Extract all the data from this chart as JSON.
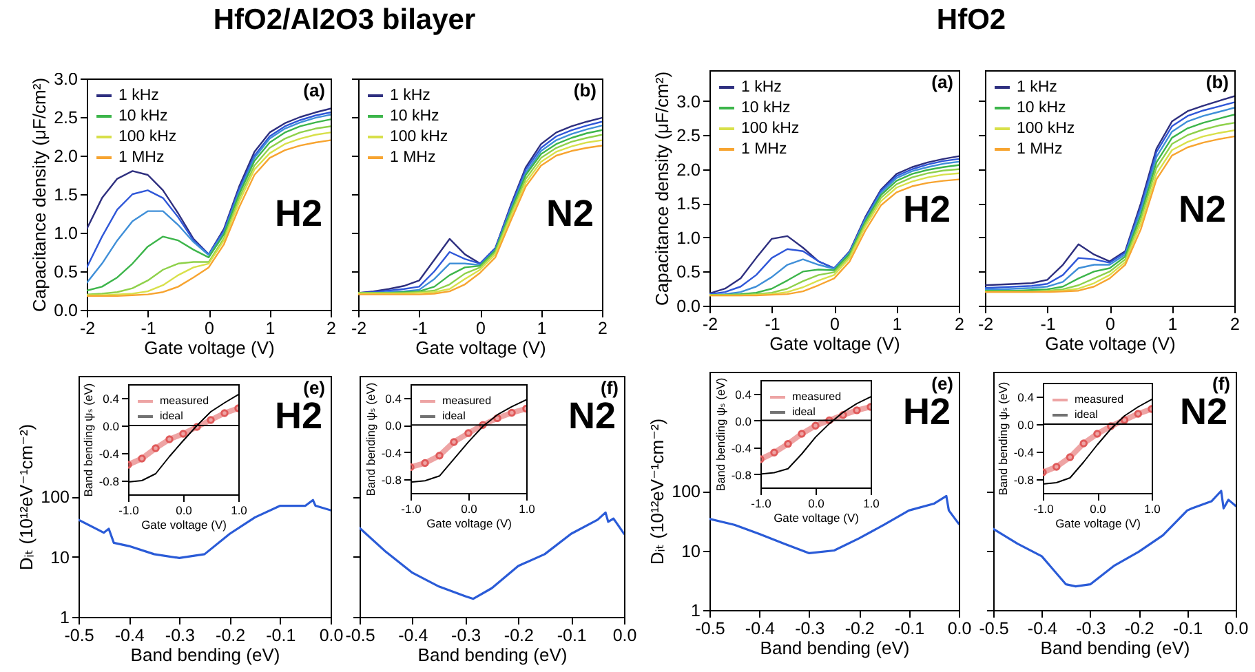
{
  "chart_data": [
    {
      "type": "line",
      "title": "HfO2/Al2O3 bilayer",
      "xlabel": "Gate voltage (V)",
      "ylabel": "Capacitance density (μF/cm²)",
      "annotations": [
        "(a)",
        "H2"
      ],
      "legend": "top left",
      "xlim": [
        -2,
        2
      ],
      "ylim": [
        0,
        3
      ],
      "xticks": [
        -2,
        -1,
        0,
        1,
        2
      ],
      "yticks": [
        {
          "value": 0,
          "label": "0.0"
        },
        {
          "value": 0.5,
          "label": "0.5"
        },
        {
          "value": 1,
          "label": "1.0"
        },
        {
          "value": 1.5,
          "label": "1.5"
        },
        {
          "value": 2,
          "label": "2.0"
        },
        {
          "value": 2.5,
          "label": "2.5"
        },
        {
          "value": 3,
          "label": "3.0"
        }
      ],
      "x": [
        -2,
        -1.75,
        -1.5,
        -1.25,
        -1,
        -0.75,
        -0.5,
        -0.25,
        0,
        0.25,
        0.5,
        0.75,
        1,
        1.25,
        1.5,
        1.75,
        2
      ],
      "series": [
        {
          "name": "1 kHz",
          "color": "#2e2f7f",
          "values": [
            1.05,
            1.45,
            1.7,
            1.8,
            1.75,
            1.55,
            1.25,
            0.92,
            0.72,
            1.05,
            1.6,
            2.05,
            2.3,
            2.42,
            2.5,
            2.56,
            2.61
          ]
        },
        {
          "color": "#2f57d8",
          "values": [
            0.55,
            0.95,
            1.3,
            1.5,
            1.55,
            1.45,
            1.2,
            0.9,
            0.72,
            1.03,
            1.57,
            2.0,
            2.25,
            2.38,
            2.46,
            2.52,
            2.56
          ]
        },
        {
          "color": "#3f8fd8",
          "values": [
            0.35,
            0.6,
            0.9,
            1.15,
            1.28,
            1.28,
            1.1,
            0.88,
            0.71,
            1.0,
            1.53,
            1.97,
            2.22,
            2.35,
            2.43,
            2.49,
            2.53
          ]
        },
        {
          "name": "10 kHz",
          "color": "#3cb54a",
          "values": [
            0.25,
            0.3,
            0.42,
            0.6,
            0.82,
            0.95,
            0.9,
            0.78,
            0.68,
            0.98,
            1.5,
            1.93,
            2.17,
            2.3,
            2.38,
            2.43,
            2.47
          ]
        },
        {
          "color": "#8ed14a",
          "values": [
            0.2,
            0.21,
            0.23,
            0.28,
            0.38,
            0.52,
            0.6,
            0.62,
            0.62,
            0.93,
            1.45,
            1.87,
            2.1,
            2.22,
            2.3,
            2.35,
            2.38
          ]
        },
        {
          "name": "100 kHz",
          "color": "#d8e04a",
          "values": [
            0.19,
            0.19,
            0.2,
            0.21,
            0.24,
            0.32,
            0.45,
            0.55,
            0.6,
            0.9,
            1.4,
            1.82,
            2.03,
            2.15,
            2.22,
            2.27,
            2.3
          ]
        },
        {
          "name": "1 MHz",
          "color": "#f7a430",
          "values": [
            0.18,
            0.18,
            0.18,
            0.19,
            0.2,
            0.23,
            0.3,
            0.42,
            0.55,
            0.85,
            1.33,
            1.75,
            1.97,
            2.07,
            2.13,
            2.17,
            2.2
          ]
        }
      ]
    },
    {
      "type": "line",
      "xlabel": "Gate voltage (V)",
      "annotations": [
        "(b)",
        "N2"
      ],
      "legend": "top left",
      "tick_labels": "x",
      "xlim": [
        -2,
        2
      ],
      "ylim": [
        0,
        3
      ],
      "xticks": [
        -2,
        -1,
        0,
        1,
        2
      ],
      "yticks": [
        0,
        0.5,
        1,
        1.5,
        2,
        2.5,
        3
      ],
      "x": [
        -2,
        -1.75,
        -1.5,
        -1.25,
        -1,
        -0.75,
        -0.5,
        -0.25,
        0,
        0.25,
        0.5,
        0.75,
        1,
        1.25,
        1.5,
        1.75,
        2
      ],
      "series": [
        {
          "name": "1 kHz",
          "color": "#2e2f7f",
          "values": [
            0.22,
            0.24,
            0.27,
            0.31,
            0.38,
            0.65,
            0.92,
            0.72,
            0.6,
            0.8,
            1.35,
            1.85,
            2.15,
            2.3,
            2.38,
            2.44,
            2.49
          ]
        },
        {
          "color": "#2f57d8",
          "values": [
            0.22,
            0.23,
            0.25,
            0.27,
            0.3,
            0.5,
            0.75,
            0.66,
            0.6,
            0.8,
            1.33,
            1.82,
            2.1,
            2.25,
            2.33,
            2.39,
            2.44
          ]
        },
        {
          "color": "#3f8fd8",
          "values": [
            0.22,
            0.22,
            0.23,
            0.24,
            0.26,
            0.4,
            0.6,
            0.6,
            0.58,
            0.78,
            1.3,
            1.78,
            2.06,
            2.2,
            2.28,
            2.34,
            2.39
          ]
        },
        {
          "name": "10 kHz",
          "color": "#3cb54a",
          "values": [
            0.22,
            0.22,
            0.22,
            0.23,
            0.24,
            0.3,
            0.45,
            0.55,
            0.57,
            0.77,
            1.27,
            1.75,
            2.02,
            2.15,
            2.23,
            2.29,
            2.33
          ]
        },
        {
          "color": "#8ed14a",
          "values": [
            0.22,
            0.22,
            0.22,
            0.22,
            0.23,
            0.25,
            0.33,
            0.47,
            0.55,
            0.75,
            1.24,
            1.7,
            1.97,
            2.1,
            2.18,
            2.23,
            2.27
          ]
        },
        {
          "name": "100 kHz",
          "color": "#d8e04a",
          "values": [
            0.21,
            0.21,
            0.21,
            0.21,
            0.22,
            0.23,
            0.27,
            0.4,
            0.52,
            0.72,
            1.2,
            1.65,
            1.92,
            2.05,
            2.12,
            2.17,
            2.2
          ]
        },
        {
          "name": "1 MHz",
          "color": "#f7a430",
          "values": [
            0.2,
            0.2,
            0.2,
            0.2,
            0.2,
            0.21,
            0.24,
            0.33,
            0.48,
            0.68,
            1.15,
            1.6,
            1.87,
            2.0,
            2.06,
            2.1,
            2.13
          ]
        }
      ]
    },
    {
      "type": "line",
      "title": "HfO2",
      "xlabel": "Gate voltage (V)",
      "ylabel": "Capacitance density (μF/cm²)",
      "annotations": [
        "(a)",
        "H2"
      ],
      "legend": "top left",
      "xlim": [
        -2,
        2
      ],
      "ylim": [
        0,
        3.45
      ],
      "xticks": [
        -2,
        -1,
        0,
        1,
        2
      ],
      "yticks": [
        {
          "value": 0,
          "label": "0.0"
        },
        {
          "value": 0.5,
          "label": "0.5"
        },
        {
          "value": 1,
          "label": "1.0"
        },
        {
          "value": 1.5,
          "label": "1.5"
        },
        {
          "value": 2,
          "label": "2.0"
        },
        {
          "value": 2.5,
          "label": "2.5"
        },
        {
          "value": 3,
          "label": "3.0"
        }
      ],
      "x": [
        -2,
        -1.75,
        -1.5,
        -1.25,
        -1,
        -0.75,
        -0.5,
        -0.25,
        0,
        0.25,
        0.5,
        0.75,
        1,
        1.25,
        1.5,
        1.75,
        2
      ],
      "series": [
        {
          "name": "1 kHz",
          "color": "#2e2f7f",
          "values": [
            0.18,
            0.25,
            0.4,
            0.7,
            0.98,
            1.02,
            0.85,
            0.65,
            0.55,
            0.8,
            1.3,
            1.7,
            1.93,
            2.03,
            2.1,
            2.15,
            2.19
          ]
        },
        {
          "color": "#2f57d8",
          "values": [
            0.17,
            0.2,
            0.28,
            0.45,
            0.7,
            0.83,
            0.8,
            0.65,
            0.55,
            0.79,
            1.28,
            1.68,
            1.9,
            2.0,
            2.07,
            2.12,
            2.15
          ]
        },
        {
          "color": "#3f8fd8",
          "values": [
            0.16,
            0.17,
            0.2,
            0.28,
            0.42,
            0.6,
            0.68,
            0.6,
            0.54,
            0.78,
            1.26,
            1.65,
            1.87,
            1.97,
            2.03,
            2.08,
            2.11
          ]
        },
        {
          "name": "10 kHz",
          "color": "#3cb54a",
          "values": [
            0.16,
            0.16,
            0.17,
            0.19,
            0.25,
            0.37,
            0.5,
            0.53,
            0.52,
            0.76,
            1.23,
            1.62,
            1.83,
            1.93,
            1.99,
            2.03,
            2.06
          ]
        },
        {
          "color": "#8ed14a",
          "values": [
            0.16,
            0.16,
            0.16,
            0.17,
            0.19,
            0.25,
            0.36,
            0.45,
            0.49,
            0.73,
            1.2,
            1.58,
            1.78,
            1.88,
            1.94,
            1.98,
            2.0
          ]
        },
        {
          "name": "100 kHz",
          "color": "#d8e04a",
          "values": [
            0.15,
            0.15,
            0.15,
            0.16,
            0.17,
            0.2,
            0.27,
            0.37,
            0.45,
            0.7,
            1.16,
            1.53,
            1.73,
            1.82,
            1.88,
            1.92,
            1.94
          ]
        },
        {
          "name": "1 MHz",
          "color": "#f7a430",
          "values": [
            0.15,
            0.15,
            0.15,
            0.15,
            0.16,
            0.17,
            0.21,
            0.3,
            0.4,
            0.65,
            1.1,
            1.47,
            1.66,
            1.75,
            1.8,
            1.83,
            1.85
          ]
        }
      ]
    },
    {
      "type": "line",
      "xlabel": "Gate voltage (V)",
      "annotations": [
        "(b)",
        "N2"
      ],
      "legend": "top left",
      "tick_labels": "x",
      "xlim": [
        -2,
        2
      ],
      "ylim": [
        0,
        3.45
      ],
      "xticks": [
        -2,
        -1,
        0,
        1,
        2
      ],
      "yticks": [
        0,
        0.5,
        1,
        1.5,
        2,
        2.5,
        3
      ],
      "x": [
        -2,
        -1.75,
        -1.5,
        -1.25,
        -1,
        -0.75,
        -0.5,
        -0.25,
        0,
        0.25,
        0.5,
        0.75,
        1,
        1.25,
        1.5,
        1.75,
        2
      ],
      "series": [
        {
          "name": "1 kHz",
          "color": "#2e2f7f",
          "values": [
            0.3,
            0.31,
            0.32,
            0.33,
            0.38,
            0.6,
            0.9,
            0.75,
            0.65,
            0.8,
            1.5,
            2.3,
            2.7,
            2.85,
            2.93,
            3.0,
            3.07
          ]
        },
        {
          "color": "#2f57d8",
          "values": [
            0.26,
            0.27,
            0.28,
            0.29,
            0.32,
            0.45,
            0.7,
            0.68,
            0.63,
            0.78,
            1.45,
            2.25,
            2.63,
            2.78,
            2.86,
            2.92,
            2.98
          ]
        },
        {
          "color": "#3f8fd8",
          "values": [
            0.24,
            0.24,
            0.25,
            0.26,
            0.28,
            0.35,
            0.55,
            0.6,
            0.6,
            0.75,
            1.4,
            2.18,
            2.55,
            2.7,
            2.78,
            2.84,
            2.9
          ]
        },
        {
          "name": "10 kHz",
          "color": "#3cb54a",
          "values": [
            0.22,
            0.22,
            0.22,
            0.23,
            0.24,
            0.28,
            0.4,
            0.5,
            0.55,
            0.72,
            1.33,
            2.1,
            2.46,
            2.6,
            2.68,
            2.74,
            2.8
          ]
        },
        {
          "color": "#8ed14a",
          "values": [
            0.21,
            0.21,
            0.21,
            0.21,
            0.22,
            0.24,
            0.3,
            0.4,
            0.5,
            0.68,
            1.27,
            2.02,
            2.37,
            2.5,
            2.58,
            2.64,
            2.68
          ]
        },
        {
          "name": "100 kHz",
          "color": "#d8e04a",
          "values": [
            0.2,
            0.2,
            0.2,
            0.2,
            0.21,
            0.22,
            0.25,
            0.33,
            0.45,
            0.64,
            1.2,
            1.93,
            2.28,
            2.4,
            2.48,
            2.53,
            2.57
          ]
        },
        {
          "name": "1 MHz",
          "color": "#f7a430",
          "values": [
            0.2,
            0.2,
            0.2,
            0.2,
            0.2,
            0.21,
            0.22,
            0.28,
            0.4,
            0.6,
            1.12,
            1.85,
            2.2,
            2.32,
            2.39,
            2.44,
            2.48
          ]
        }
      ]
    },
    {
      "type": "line",
      "xlabel": "Band bending (eV)",
      "ylabel": "Dᵢₜ (10¹²eV⁻¹cm⁻²)",
      "annotations": [
        "(e)",
        "H2"
      ],
      "log": "y",
      "xlim": [
        -0.5,
        0
      ],
      "ylim": [
        1,
        10000
      ],
      "xticks": [
        -0.5,
        -0.4,
        -0.3,
        -0.2,
        -0.1,
        {
          "value": 0,
          "label": "0.0"
        }
      ],
      "yticks": [
        1,
        10,
        100
      ],
      "x": [
        -0.5,
        -0.45,
        -0.44,
        -0.43,
        -0.4,
        -0.35,
        -0.3,
        -0.25,
        -0.2,
        -0.15,
        -0.1,
        -0.05,
        -0.035,
        -0.03,
        0
      ],
      "series": [
        {
          "color": "#2a5bd7",
          "values": [
            41,
            25,
            29,
            17,
            15,
            11,
            9.5,
            11,
            24,
            45,
            70,
            70,
            87,
            70,
            59
          ]
        }
      ]
    },
    {
      "type": "line",
      "xlabel": "Gate voltage (V)",
      "ylabel": "Band bending ψₛ (eV)",
      "legend": "top left",
      "xlim": [
        -1,
        1
      ],
      "ylim": [
        -1,
        0.6
      ],
      "xticks": [
        {
          "value": -1,
          "label": "-1.0"
        },
        {
          "value": 0,
          "label": "0.0"
        },
        {
          "value": 1,
          "label": "1.0"
        }
      ],
      "yticks": [
        {
          "value": -0.8,
          "label": "-0.8"
        },
        {
          "value": -0.4,
          "label": "-0.4"
        },
        {
          "value": 0,
          "label": "0.0"
        },
        {
          "value": 0.4,
          "label": "0.4"
        }
      ],
      "ref_lines": [
        {
          "axis": "y",
          "value": 0,
          "color": "#000000"
        }
      ],
      "x": [
        -1,
        -0.75,
        -0.5,
        -0.25,
        0,
        0.25,
        0.5,
        0.75,
        1
      ],
      "series": [
        {
          "name": "measured",
          "color": "#e05a5a",
          "marker": "circle",
          "values": [
            -0.57,
            -0.48,
            -0.33,
            -0.2,
            -0.12,
            -0.02,
            0.08,
            0.18,
            0.25
          ]
        },
        {
          "name": "ideal",
          "color": "#000000",
          "values": [
            -0.82,
            -0.8,
            -0.7,
            -0.45,
            -0.22,
            0.0,
            0.2,
            0.33,
            0.45
          ]
        }
      ]
    },
    {
      "type": "line",
      "xlabel": "Band bending (eV)",
      "annotations": [
        "(f)",
        "N2"
      ],
      "log": "y",
      "tick_labels": "x",
      "xlim": [
        -0.5,
        0
      ],
      "ylim": [
        1,
        10000
      ],
      "xticks": [
        -0.5,
        -0.4,
        -0.3,
        -0.2,
        -0.1,
        {
          "value": 0,
          "label": "0.0"
        }
      ],
      "yticks": [
        1,
        10,
        100
      ],
      "x": [
        -0.5,
        -0.45,
        -0.4,
        -0.35,
        -0.3,
        -0.285,
        -0.25,
        -0.2,
        -0.15,
        -0.1,
        -0.05,
        -0.035,
        -0.03,
        -0.02,
        0
      ],
      "series": [
        {
          "color": "#2a5bd7",
          "values": [
            30,
            12,
            5.4,
            3.2,
            2.2,
            2,
            3,
            7,
            11,
            24,
            41,
            54,
            38,
            43,
            24
          ]
        }
      ]
    },
    {
      "type": "line",
      "xlabel": "Gate voltage (V)",
      "ylabel": "Band bending ψₛ (eV)",
      "legend": "top left",
      "xlim": [
        -1,
        1
      ],
      "ylim": [
        -1,
        0.6
      ],
      "xticks": [
        {
          "value": -1,
          "label": "-1.0"
        },
        {
          "value": 0,
          "label": "0.0"
        },
        {
          "value": 1,
          "label": "1.0"
        }
      ],
      "yticks": [
        {
          "value": -0.8,
          "label": "-0.8"
        },
        {
          "value": -0.4,
          "label": "-0.4"
        },
        {
          "value": 0,
          "label": "0.0"
        },
        {
          "value": 0.4,
          "label": "0.4"
        }
      ],
      "ref_lines": [
        {
          "axis": "y",
          "value": 0,
          "color": "#000000"
        }
      ],
      "x": [
        -1,
        -0.75,
        -0.5,
        -0.25,
        0,
        0.25,
        0.5,
        0.75,
        1
      ],
      "series": [
        {
          "name": "measured",
          "color": "#e05a5a",
          "marker": "circle",
          "values": [
            -0.62,
            -0.56,
            -0.45,
            -0.25,
            -0.12,
            0.0,
            0.1,
            0.18,
            0.24
          ]
        },
        {
          "name": "ideal",
          "color": "#000000",
          "values": [
            -0.84,
            -0.82,
            -0.75,
            -0.5,
            -0.25,
            -0.02,
            0.15,
            0.27,
            0.37
          ]
        }
      ]
    },
    {
      "type": "line",
      "xlabel": "Band bending (eV)",
      "ylabel": "Dᵢₜ (10¹²eV⁻¹cm⁻²)",
      "annotations": [
        "(e)",
        "H2"
      ],
      "log": "y",
      "xlim": [
        -0.5,
        0
      ],
      "ylim": [
        1,
        10000
      ],
      "xticks": [
        -0.5,
        -0.4,
        -0.3,
        -0.2,
        -0.1,
        {
          "value": 0,
          "label": "0.0"
        }
      ],
      "yticks": [
        1,
        10,
        100
      ],
      "x": [
        -0.5,
        -0.45,
        -0.4,
        -0.35,
        -0.3,
        -0.25,
        -0.2,
        -0.15,
        -0.1,
        -0.05,
        -0.025,
        -0.02,
        0
      ],
      "series": [
        {
          "color": "#2a5bd7",
          "values": [
            34,
            27,
            19,
            13,
            9,
            10,
            16,
            27,
            47,
            61,
            82,
            47,
            28
          ]
        }
      ]
    },
    {
      "type": "line",
      "xlabel": "Gate voltage (V)",
      "ylabel": "Band bending ψₛ (eV)",
      "legend": "top left",
      "xlim": [
        -1,
        1
      ],
      "ylim": [
        -1,
        0.6
      ],
      "xticks": [
        {
          "value": -1,
          "label": "-1.0"
        },
        {
          "value": 0,
          "label": "0.0"
        },
        {
          "value": 1,
          "label": "1.0"
        }
      ],
      "yticks": [
        {
          "value": -0.8,
          "label": "-0.8"
        },
        {
          "value": -0.4,
          "label": "-0.4"
        },
        {
          "value": 0,
          "label": "0.0"
        },
        {
          "value": 0.4,
          "label": "0.4"
        }
      ],
      "ref_lines": [
        {
          "axis": "y",
          "value": 0,
          "color": "#000000"
        }
      ],
      "x": [
        -1,
        -0.75,
        -0.5,
        -0.25,
        0,
        0.25,
        0.5,
        0.75,
        1
      ],
      "series": [
        {
          "name": "measured",
          "color": "#e05a5a",
          "marker": "circle",
          "values": [
            -0.58,
            -0.48,
            -0.35,
            -0.2,
            -0.08,
            0.0,
            0.08,
            0.15,
            0.2
          ]
        },
        {
          "name": "ideal",
          "color": "#000000",
          "values": [
            -0.8,
            -0.78,
            -0.72,
            -0.5,
            -0.25,
            -0.05,
            0.12,
            0.25,
            0.35
          ]
        }
      ]
    },
    {
      "type": "line",
      "xlabel": "Band bending (eV)",
      "annotations": [
        "(f)",
        "N2"
      ],
      "log": "y",
      "tick_labels": "x",
      "xlim": [
        -0.5,
        0
      ],
      "ylim": [
        1,
        10000
      ],
      "xticks": [
        -0.5,
        -0.4,
        -0.3,
        -0.2,
        -0.1,
        {
          "value": 0,
          "label": "0.0"
        }
      ],
      "yticks": [
        1,
        10,
        100
      ],
      "x": [
        -0.5,
        -0.45,
        -0.4,
        -0.35,
        -0.33,
        -0.3,
        -0.25,
        -0.2,
        -0.15,
        -0.1,
        -0.09,
        -0.05,
        -0.03,
        -0.025,
        -0.015,
        0
      ],
      "series": [
        {
          "color": "#2a5bd7",
          "values": [
            23,
            13,
            8,
            2.7,
            2.5,
            2.7,
            5.6,
            9.5,
            18,
            47,
            51,
            67,
            100,
            51,
            71,
            56
          ]
        }
      ]
    },
    {
      "type": "line",
      "xlabel": "Gate voltage (V)",
      "ylabel": "Band bending ψₛ (eV)",
      "legend": "top left",
      "xlim": [
        -1,
        1
      ],
      "ylim": [
        -1,
        0.6
      ],
      "xticks": [
        {
          "value": -1,
          "label": "-1.0"
        },
        {
          "value": 0,
          "label": "0.0"
        },
        {
          "value": 1,
          "label": "1.0"
        }
      ],
      "yticks": [
        {
          "value": -0.8,
          "label": "-0.8"
        },
        {
          "value": -0.4,
          "label": "-0.4"
        },
        {
          "value": 0,
          "label": "0.0"
        },
        {
          "value": 0.4,
          "label": "0.4"
        }
      ],
      "ref_lines": [
        {
          "axis": "y",
          "value": 0,
          "color": "#000000"
        }
      ],
      "x": [
        -1,
        -0.75,
        -0.5,
        -0.25,
        0,
        0.25,
        0.5,
        0.75,
        1
      ],
      "series": [
        {
          "name": "measured",
          "color": "#e05a5a",
          "marker": "circle",
          "values": [
            -0.7,
            -0.62,
            -0.48,
            -0.28,
            -0.14,
            -0.03,
            0.06,
            0.15,
            0.22
          ]
        },
        {
          "name": "ideal",
          "color": "#000000",
          "values": [
            -0.87,
            -0.85,
            -0.78,
            -0.55,
            -0.3,
            -0.07,
            0.12,
            0.25,
            0.36
          ]
        }
      ]
    }
  ]
}
